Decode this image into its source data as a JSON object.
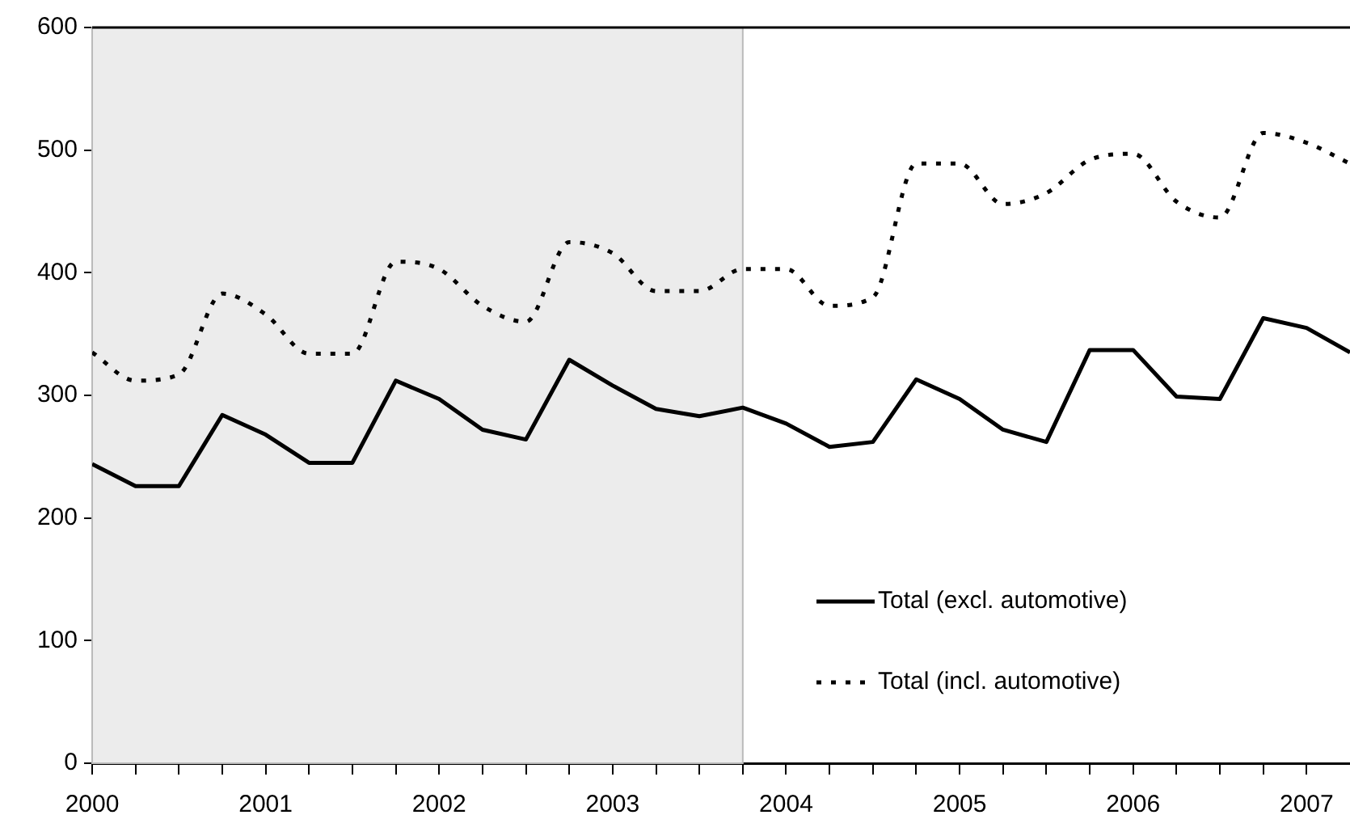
{
  "chart_data": {
    "type": "line",
    "x": [
      2000,
      2000.25,
      2000.5,
      2000.75,
      2001,
      2001.25,
      2001.5,
      2001.75,
      2002,
      2002.25,
      2002.5,
      2002.75,
      2003,
      2003.25,
      2003.5,
      2003.75,
      2004,
      2004.25,
      2004.5,
      2004.75,
      2005,
      2005.25,
      2005.5,
      2005.75,
      2006,
      2006.25,
      2006.5,
      2006.75,
      2007,
      2007.25
    ],
    "series": [
      {
        "name": "Total (excl. automotive)",
        "color": "#000000",
        "line_style": "solid",
        "values": [
          244,
          226,
          226,
          284,
          268,
          245,
          245,
          312,
          297,
          272,
          264,
          329,
          308,
          289,
          283,
          290,
          277,
          258,
          262,
          313,
          297,
          272,
          262,
          337,
          337,
          299,
          297,
          363,
          355,
          335
        ]
      },
      {
        "name": "Total (incl. automotive)",
        "color": "#000000",
        "line_style": "dotted",
        "values": [
          335,
          312,
          317,
          383,
          366,
          334,
          334,
          409,
          403,
          373,
          360,
          425,
          416,
          385,
          385,
          403,
          403,
          373,
          380,
          489,
          489,
          456,
          465,
          492,
          497,
          458,
          445,
          514,
          506,
          489
        ]
      }
    ],
    "xlim": [
      2000,
      2007.25
    ],
    "xticks": [
      2000,
      {
        "value": 2000.25,
        "label": null
      },
      {
        "value": 2000.5,
        "label": null
      },
      {
        "value": 2000.75,
        "label": null
      },
      2001,
      {
        "value": 2001.25,
        "label": null
      },
      {
        "value": 2001.5,
        "label": null
      },
      {
        "value": 2001.75,
        "label": null
      },
      2002,
      {
        "value": 2002.25,
        "label": null
      },
      {
        "value": 2002.5,
        "label": null
      },
      {
        "value": 2002.75,
        "label": null
      },
      2003,
      {
        "value": 2003.25,
        "label": null
      },
      {
        "value": 2003.5,
        "label": null
      },
      {
        "value": 2003.75,
        "label": null
      },
      2004,
      {
        "value": 2004.25,
        "label": null
      },
      {
        "value": 2004.5,
        "label": null
      },
      {
        "value": 2004.75,
        "label": null
      },
      2005,
      {
        "value": 2005.25,
        "label": null
      },
      {
        "value": 2005.5,
        "label": null
      },
      {
        "value": 2005.75,
        "label": null
      },
      2006,
      {
        "value": 2006.25,
        "label": null
      },
      {
        "value": 2006.5,
        "label": null
      },
      {
        "value": 2006.75,
        "label": null
      },
      2007
    ],
    "ylim": [
      0,
      600
    ],
    "yticks": [
      0,
      100,
      200,
      300,
      400,
      500,
      600
    ],
    "bands": [
      {
        "axis": "x",
        "from": 2000,
        "to": 2003.75,
        "color": "#ececec"
      }
    ],
    "grid": false,
    "legend": "bottom right",
    "marker": "none"
  }
}
